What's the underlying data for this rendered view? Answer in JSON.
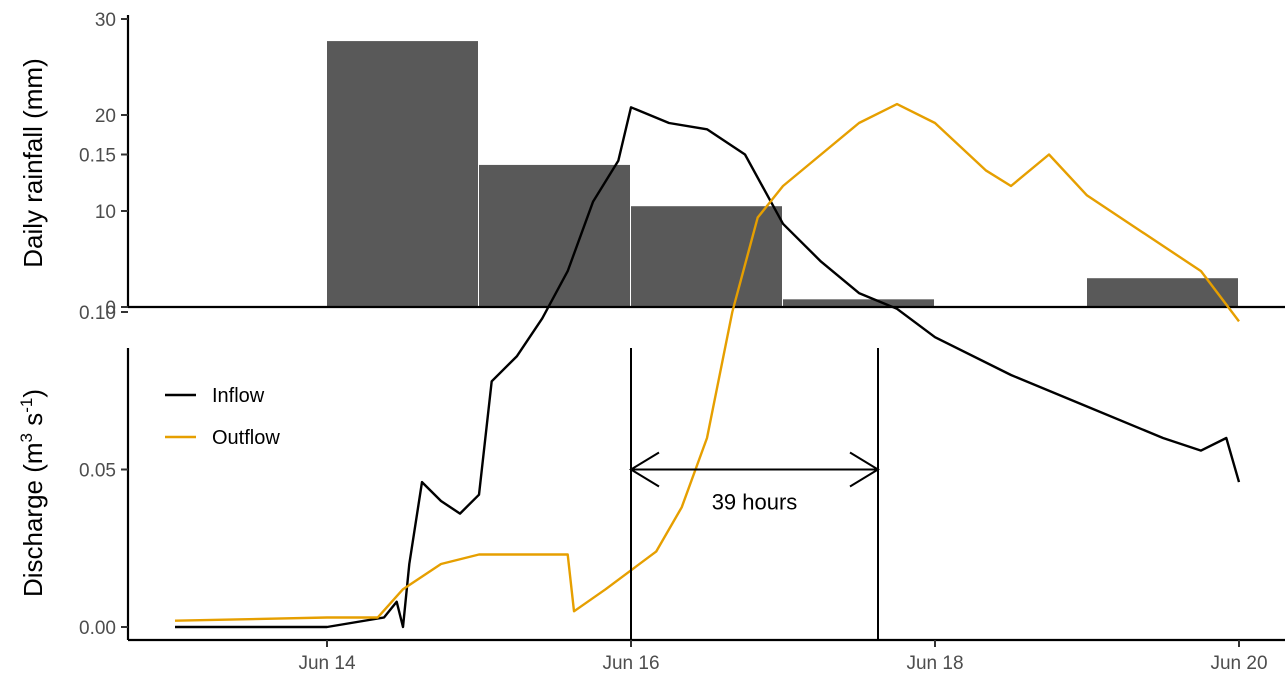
{
  "chart_data": [
    {
      "type": "bar",
      "ylabel": "Daily rainfall (mm)",
      "ylim": [
        0,
        30
      ],
      "yticks": [
        0,
        10,
        20,
        30
      ],
      "categories": [
        "Jun 14",
        "Jun 15",
        "Jun 16",
        "Jun 17",
        "Jun 19"
      ],
      "bars": [
        {
          "date": "Jun 14",
          "value": 27.7
        },
        {
          "date": "Jun 15",
          "value": 14.8
        },
        {
          "date": "Jun 16",
          "value": 10.5
        },
        {
          "date": "Jun 17",
          "value": 0.8
        },
        {
          "date": "Jun 19",
          "value": 3.0
        }
      ],
      "bar_color": "#595959",
      "grid": false
    },
    {
      "type": "line",
      "ylabel": "Discharge (m^3 s^-1)",
      "ylabel_parts": {
        "base": "Discharge (m",
        "sup1": "3",
        "mid": " s",
        "sup2": "-1",
        "end": ")"
      },
      "ylim": [
        0,
        0.175
      ],
      "yticks": [
        "0.00",
        "0.05",
        "0.10",
        "0.15"
      ],
      "xticks": [
        "Jun 14",
        "Jun 16",
        "Jun 18",
        "Jun 20"
      ],
      "legend_position": "top-left",
      "grid": false,
      "series": [
        {
          "name": "Inflow",
          "color": "#000000",
          "points": [
            [
              "Jun 13 00:00",
              0.0
            ],
            [
              "Jun 14 00:00",
              0.0
            ],
            [
              "Jun 14 09:00",
              0.003
            ],
            [
              "Jun 14 11:00",
              0.008
            ],
            [
              "Jun 14 12:00",
              0.0
            ],
            [
              "Jun 14 13:00",
              0.02
            ],
            [
              "Jun 14 15:00",
              0.046
            ],
            [
              "Jun 14 18:00",
              0.04
            ],
            [
              "Jun 14 21:00",
              0.036
            ],
            [
              "Jun 15 00:00",
              0.042
            ],
            [
              "Jun 15 02:00",
              0.078
            ],
            [
              "Jun 15 06:00",
              0.086
            ],
            [
              "Jun 15 10:00",
              0.098
            ],
            [
              "Jun 15 14:00",
              0.113
            ],
            [
              "Jun 15 18:00",
              0.135
            ],
            [
              "Jun 15 22:00",
              0.148
            ],
            [
              "Jun 16 00:00",
              0.165
            ],
            [
              "Jun 16 06:00",
              0.16
            ],
            [
              "Jun 16 12:00",
              0.158
            ],
            [
              "Jun 16 18:00",
              0.15
            ],
            [
              "Jun 17 00:00",
              0.128
            ],
            [
              "Jun 17 06:00",
              0.116
            ],
            [
              "Jun 17 12:00",
              0.106
            ],
            [
              "Jun 17 18:00",
              0.101
            ],
            [
              "Jun 18 00:00",
              0.092
            ],
            [
              "Jun 18 12:00",
              0.08
            ],
            [
              "Jun 19 00:00",
              0.07
            ],
            [
              "Jun 19 12:00",
              0.06
            ],
            [
              "Jun 19 18:00",
              0.056
            ],
            [
              "Jun 19 22:00",
              0.06
            ],
            [
              "Jun 20 00:00",
              0.046
            ]
          ]
        },
        {
          "name": "Outflow",
          "color": "#E69F00",
          "points": [
            [
              "Jun 13 00:00",
              0.002
            ],
            [
              "Jun 14 00:00",
              0.003
            ],
            [
              "Jun 14 08:00",
              0.003
            ],
            [
              "Jun 14 12:00",
              0.012
            ],
            [
              "Jun 14 18:00",
              0.02
            ],
            [
              "Jun 15 00:00",
              0.023
            ],
            [
              "Jun 15 14:00",
              0.023
            ],
            [
              "Jun 15 15:00",
              0.005
            ],
            [
              "Jun 15 20:00",
              0.012
            ],
            [
              "Jun 16 00:00",
              0.018
            ],
            [
              "Jun 16 04:00",
              0.024
            ],
            [
              "Jun 16 08:00",
              0.038
            ],
            [
              "Jun 16 12:00",
              0.06
            ],
            [
              "Jun 16 16:00",
              0.1
            ],
            [
              "Jun 16 20:00",
              0.13
            ],
            [
              "Jun 17 00:00",
              0.14
            ],
            [
              "Jun 17 06:00",
              0.15
            ],
            [
              "Jun 17 12:00",
              0.16
            ],
            [
              "Jun 17 18:00",
              0.166
            ],
            [
              "Jun 18 00:00",
              0.16
            ],
            [
              "Jun 18 08:00",
              0.145
            ],
            [
              "Jun 18 12:00",
              0.14
            ],
            [
              "Jun 18 18:00",
              0.15
            ],
            [
              "Jun 19 00:00",
              0.137
            ],
            [
              "Jun 19 12:00",
              0.121
            ],
            [
              "Jun 19 18:00",
              0.113
            ],
            [
              "Jun 20 00:00",
              0.097
            ]
          ]
        }
      ],
      "annotation": {
        "text": "39 hours",
        "from": "Jun 16 00:00",
        "to": "Jun 17 15:00",
        "y": 0.05
      }
    }
  ]
}
